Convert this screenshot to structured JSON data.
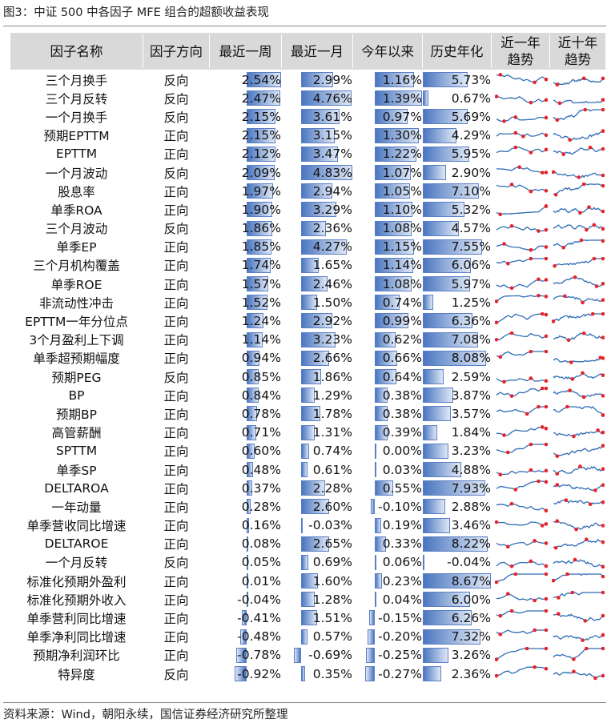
{
  "figure_title": "图3：中证 500 中各因子 MFE 组合的超额收益表现",
  "headers": {
    "name": "因子名称",
    "direction": "因子方向",
    "week": "最近一周",
    "month": "最近一月",
    "ytd": "今年以来",
    "annual": "历史年化",
    "trend1y": [
      "近一年",
      "趋势"
    ],
    "trend10y": [
      "近十年",
      "趋势"
    ]
  },
  "colors": {
    "header_bg": "#d9d9d9",
    "bar_dark": "#4a76c0",
    "bar_light": "#dfe8f6",
    "spark_line": "#2f6cb5",
    "spark_marker": "#e8222a"
  },
  "rows": [
    {
      "name": "三个月换手",
      "direction": "反向",
      "week": "2.54%",
      "month": "2.99%",
      "ytd": "1.16%",
      "annual": "5.73%",
      "w": 2.54,
      "m": 2.99,
      "y": 1.16,
      "a": 5.73
    },
    {
      "name": "三个月反转",
      "direction": "反向",
      "week": "2.47%",
      "month": "4.76%",
      "ytd": "1.39%",
      "annual": "0.67%",
      "w": 2.47,
      "m": 4.76,
      "y": 1.39,
      "a": 0.67
    },
    {
      "name": "一个月换手",
      "direction": "反向",
      "week": "2.15%",
      "month": "3.61%",
      "ytd": "0.97%",
      "annual": "5.69%",
      "w": 2.15,
      "m": 3.61,
      "y": 0.97,
      "a": 5.69
    },
    {
      "name": "预期EPTTM",
      "direction": "正向",
      "week": "2.15%",
      "month": "3.15%",
      "ytd": "1.30%",
      "annual": "4.29%",
      "w": 2.15,
      "m": 3.15,
      "y": 1.3,
      "a": 4.29
    },
    {
      "name": "EPTTM",
      "direction": "正向",
      "week": "2.12%",
      "month": "3.47%",
      "ytd": "1.22%",
      "annual": "5.95%",
      "w": 2.12,
      "m": 3.47,
      "y": 1.22,
      "a": 5.95
    },
    {
      "name": "一个月波动",
      "direction": "反向",
      "week": "2.09%",
      "month": "4.83%",
      "ytd": "1.07%",
      "annual": "2.90%",
      "w": 2.09,
      "m": 4.83,
      "y": 1.07,
      "a": 2.9
    },
    {
      "name": "股息率",
      "direction": "正向",
      "week": "1.97%",
      "month": "2.94%",
      "ytd": "1.05%",
      "annual": "7.10%",
      "w": 1.97,
      "m": 2.94,
      "y": 1.05,
      "a": 7.1
    },
    {
      "name": "单季ROA",
      "direction": "正向",
      "week": "1.90%",
      "month": "3.29%",
      "ytd": "1.10%",
      "annual": "5.32%",
      "w": 1.9,
      "m": 3.29,
      "y": 1.1,
      "a": 5.32
    },
    {
      "name": "三个月波动",
      "direction": "反向",
      "week": "1.86%",
      "month": "2.36%",
      "ytd": "1.08%",
      "annual": "4.57%",
      "w": 1.86,
      "m": 2.36,
      "y": 1.08,
      "a": 4.57
    },
    {
      "name": "单季EP",
      "direction": "正向",
      "week": "1.85%",
      "month": "4.27%",
      "ytd": "1.15%",
      "annual": "7.55%",
      "w": 1.85,
      "m": 4.27,
      "y": 1.15,
      "a": 7.55
    },
    {
      "name": "三个月机构覆盖",
      "direction": "正向",
      "week": "1.74%",
      "month": "1.65%",
      "ytd": "1.14%",
      "annual": "6.06%",
      "w": 1.74,
      "m": 1.65,
      "y": 1.14,
      "a": 6.06
    },
    {
      "name": "单季ROE",
      "direction": "正向",
      "week": "1.57%",
      "month": "2.46%",
      "ytd": "1.08%",
      "annual": "5.97%",
      "w": 1.57,
      "m": 2.46,
      "y": 1.08,
      "a": 5.97
    },
    {
      "name": "非流动性冲击",
      "direction": "正向",
      "week": "1.52%",
      "month": "1.50%",
      "ytd": "0.74%",
      "annual": "1.25%",
      "w": 1.52,
      "m": 1.5,
      "y": 0.74,
      "a": 1.25
    },
    {
      "name": "EPTTM一年分位点",
      "direction": "正向",
      "week": "1.24%",
      "month": "2.92%",
      "ytd": "0.99%",
      "annual": "6.36%",
      "w": 1.24,
      "m": 2.92,
      "y": 0.99,
      "a": 6.36
    },
    {
      "name": "3个月盈利上下调",
      "direction": "正向",
      "week": "1.14%",
      "month": "3.23%",
      "ytd": "0.62%",
      "annual": "7.08%",
      "w": 1.14,
      "m": 3.23,
      "y": 0.62,
      "a": 7.08
    },
    {
      "name": "单季超预期幅度",
      "direction": "正向",
      "week": "0.94%",
      "month": "2.66%",
      "ytd": "0.66%",
      "annual": "8.08%",
      "w": 0.94,
      "m": 2.66,
      "y": 0.66,
      "a": 8.08
    },
    {
      "name": "预期PEG",
      "direction": "反向",
      "week": "0.85%",
      "month": "1.86%",
      "ytd": "0.64%",
      "annual": "2.59%",
      "w": 0.85,
      "m": 1.86,
      "y": 0.64,
      "a": 2.59
    },
    {
      "name": "BP",
      "direction": "正向",
      "week": "0.84%",
      "month": "1.29%",
      "ytd": "0.38%",
      "annual": "3.87%",
      "w": 0.84,
      "m": 1.29,
      "y": 0.38,
      "a": 3.87
    },
    {
      "name": "预期BP",
      "direction": "正向",
      "week": "0.78%",
      "month": "1.78%",
      "ytd": "0.38%",
      "annual": "3.57%",
      "w": 0.78,
      "m": 1.78,
      "y": 0.38,
      "a": 3.57
    },
    {
      "name": "高管薪酬",
      "direction": "正向",
      "week": "0.71%",
      "month": "1.31%",
      "ytd": "0.39%",
      "annual": "1.84%",
      "w": 0.71,
      "m": 1.31,
      "y": 0.39,
      "a": 1.84
    },
    {
      "name": "SPTTM",
      "direction": "正向",
      "week": "0.60%",
      "month": "0.74%",
      "ytd": "0.00%",
      "annual": "3.23%",
      "w": 0.6,
      "m": 0.74,
      "y": 0.0,
      "a": 3.23
    },
    {
      "name": "单季SP",
      "direction": "正向",
      "week": "0.48%",
      "month": "0.61%",
      "ytd": "0.03%",
      "annual": "4.88%",
      "w": 0.48,
      "m": 0.61,
      "y": 0.03,
      "a": 4.88
    },
    {
      "name": "DELTAROA",
      "direction": "正向",
      "week": "0.37%",
      "month": "2.28%",
      "ytd": "0.55%",
      "annual": "7.93%",
      "w": 0.37,
      "m": 2.28,
      "y": 0.55,
      "a": 7.93
    },
    {
      "name": "一年动量",
      "direction": "正向",
      "week": "0.28%",
      "month": "2.60%",
      "ytd": "-0.10%",
      "annual": "2.88%",
      "w": 0.28,
      "m": 2.6,
      "y": -0.1,
      "a": 2.88
    },
    {
      "name": "单季营收同比增速",
      "direction": "正向",
      "week": "0.16%",
      "month": "-0.03%",
      "ytd": "0.19%",
      "annual": "3.46%",
      "w": 0.16,
      "m": -0.03,
      "y": 0.19,
      "a": 3.46
    },
    {
      "name": "DELTAROE",
      "direction": "正向",
      "week": "0.08%",
      "month": "2.65%",
      "ytd": "0.33%",
      "annual": "8.22%",
      "w": 0.08,
      "m": 2.65,
      "y": 0.33,
      "a": 8.22
    },
    {
      "name": "一个月反转",
      "direction": "反向",
      "week": "0.05%",
      "month": "0.69%",
      "ytd": "0.06%",
      "annual": "-0.04%",
      "w": 0.05,
      "m": 0.69,
      "y": 0.06,
      "a": -0.04
    },
    {
      "name": "标准化预期外盈利",
      "direction": "正向",
      "week": "0.01%",
      "month": "1.60%",
      "ytd": "0.23%",
      "annual": "8.67%",
      "w": 0.01,
      "m": 1.6,
      "y": 0.23,
      "a": 8.67
    },
    {
      "name": "标准化预期外收入",
      "direction": "正向",
      "week": "-0.04%",
      "month": "1.28%",
      "ytd": "0.04%",
      "annual": "6.00%",
      "w": -0.04,
      "m": 1.28,
      "y": 0.04,
      "a": 6.0
    },
    {
      "name": "单季营利同比增速",
      "direction": "正向",
      "week": "-0.41%",
      "month": "1.51%",
      "ytd": "-0.15%",
      "annual": "6.26%",
      "w": -0.41,
      "m": 1.51,
      "y": -0.15,
      "a": 6.26
    },
    {
      "name": "单季净利同比增速",
      "direction": "正向",
      "week": "-0.48%",
      "month": "0.57%",
      "ytd": "-0.20%",
      "annual": "7.32%",
      "w": -0.48,
      "m": 0.57,
      "y": -0.2,
      "a": 7.32
    },
    {
      "name": "预期净利润环比",
      "direction": "正向",
      "week": "-0.78%",
      "month": "-0.69%",
      "ytd": "-0.25%",
      "annual": "3.26%",
      "w": -0.78,
      "m": -0.69,
      "y": -0.25,
      "a": 3.26
    },
    {
      "name": "特异度",
      "direction": "反向",
      "week": "-0.92%",
      "month": "0.35%",
      "ytd": "-0.27%",
      "annual": "2.36%",
      "w": -0.92,
      "m": 0.35,
      "y": -0.27,
      "a": 2.36
    }
  ],
  "source": "资料来源：Wind，朝阳永续，国信证券经济研究所整理"
}
